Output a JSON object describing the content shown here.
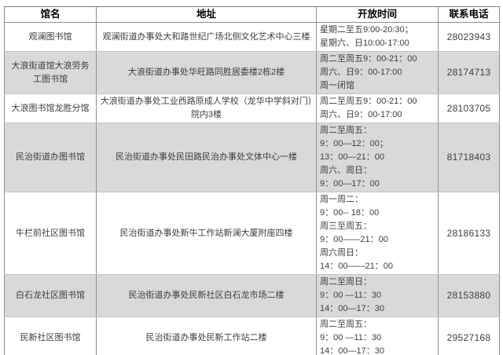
{
  "table": {
    "headers": [
      "馆名",
      "地址",
      "开放时间",
      "联系电话"
    ],
    "rows": [
      {
        "name": "观澜图书馆",
        "address": "观澜街道办事处大和路世纪广场北侧文化艺术中心三楼",
        "hours": [
          "星期二至五9:00-20:30；",
          "星期六、日10:00-17:00"
        ],
        "phone": "28023943"
      },
      {
        "name": "大浪街道馆大浪劳务工图书馆",
        "address": "大浪街道办事处华旺路同胜居委楼2栋2楼",
        "hours": [
          "周二至周五9：00-21：00",
          "周六、日9：00-17:00",
          "周一闭馆"
        ],
        "phone": "28174713"
      },
      {
        "name": "大浪图书馆龙胜分馆",
        "address": "大浪街道办事处工业西路原成人学校（龙华中学斜对门）院内3楼",
        "hours": [
          "周二至周五9：00-21：00",
          "周六、日9：00-17:00"
        ],
        "phone": "28103705"
      },
      {
        "name": "民治街道办图书馆",
        "address": "民治街道办事处民田路民治办事处文体中心一楼",
        "hours": [
          "周二至周五：",
          "9：00—12：00；",
          "13：00—21：00",
          "周六、周日：",
          "9：00—17：00"
        ],
        "phone": "81718403"
      },
      {
        "name": "牛栏前社区图书馆",
        "address": "民治街道办事处新牛工作站新澜大厦附座四楼",
        "hours": [
          "周一周二：",
          "9：00-- 18：00",
          "周三至周五：",
          "9：00——21：00",
          "周六周日：",
          "14：00——21：00"
        ],
        "phone": "28186133"
      },
      {
        "name": "白石龙社区图书馆",
        "address": "民治街道办事处民新社区白石龙市场二楼",
        "hours": [
          "周二至周日：",
          "9：00 —11：30",
          "14：00—17：30"
        ],
        "phone": "28153880"
      },
      {
        "name": "民新社区图书馆",
        "address": "民治街道办事处民新工作站二楼",
        "hours": [
          "周二至周五：",
          "9：00 —11：30",
          "14：00—17：30"
        ],
        "phone": "29527168"
      }
    ]
  },
  "colors": {
    "stripe_row_background": "#d9d9d9",
    "header_text": "#000000",
    "body_text": "#3d3d3d",
    "border": "#8f8f8f"
  }
}
